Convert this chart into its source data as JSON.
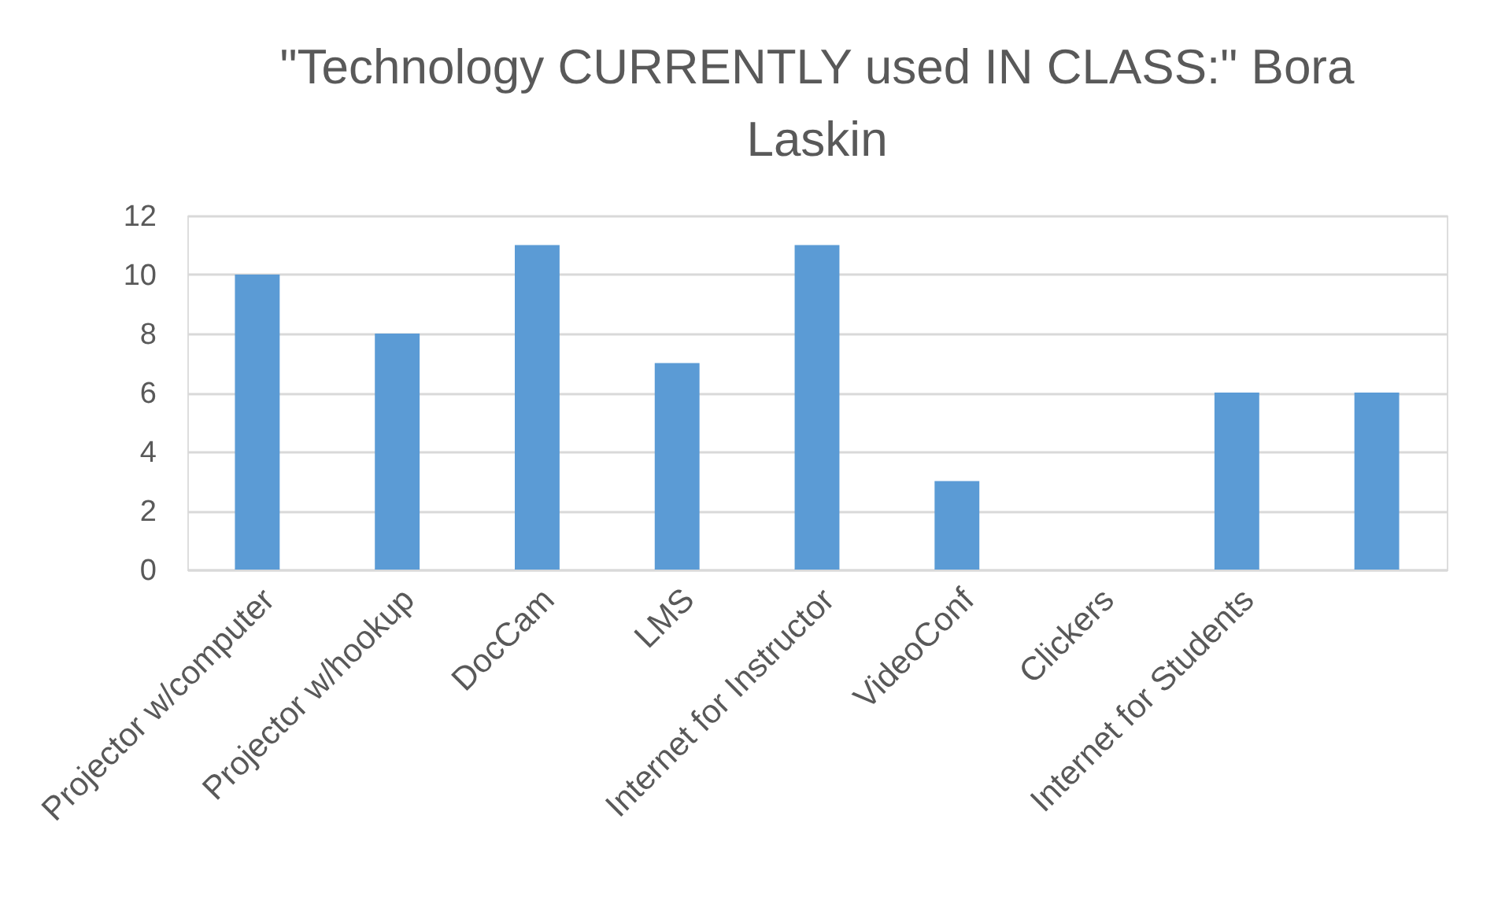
{
  "chart_data": {
    "type": "bar",
    "title": "\"Technology CURRENTLY used IN CLASS:\" Bora Laskin",
    "categories": [
      "Projector w/computer",
      "Projector w/hookup",
      "DocCam",
      "LMS",
      "Internet for Instructor",
      "VideoConf",
      "Clickers",
      "Internet for Students",
      null
    ],
    "values": [
      10,
      8,
      11,
      7,
      11,
      3,
      0,
      6,
      6
    ],
    "color": "#5b9bd5",
    "ylim": [
      0,
      12
    ],
    "yticks": [
      0,
      2,
      4,
      6,
      8,
      10,
      12
    ],
    "grid": "y"
  }
}
